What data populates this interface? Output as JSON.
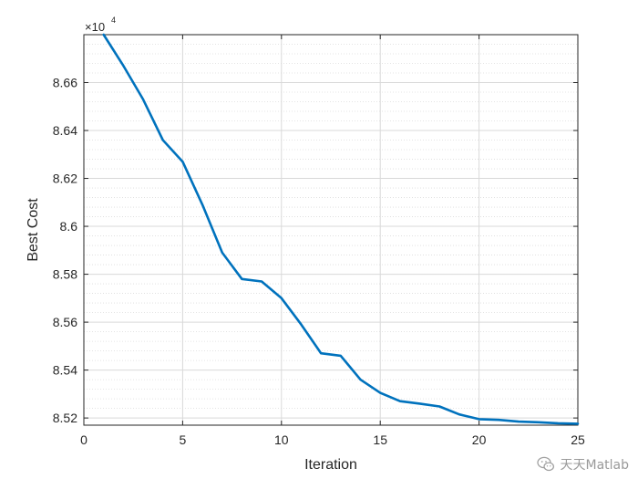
{
  "chart_data": {
    "type": "line",
    "title": "",
    "xlabel": "Iteration",
    "ylabel": "Best Cost",
    "exponent_base": "×10",
    "exponent_power": "4",
    "xlim": [
      0,
      25
    ],
    "ylim": [
      85170,
      86800
    ],
    "grid": true,
    "minor_grid_y": true,
    "x_ticks": [
      0,
      5,
      10,
      15,
      20,
      25
    ],
    "x_tick_labels": [
      "0",
      "5",
      "10",
      "15",
      "20",
      "25"
    ],
    "y_ticks": [
      85200,
      85400,
      85600,
      85800,
      86000,
      86200,
      86400,
      86600
    ],
    "y_tick_labels": [
      "8.52",
      "8.54",
      "8.56",
      "8.58",
      "8.6",
      "8.62",
      "8.64",
      "8.66"
    ],
    "line_color": "#0072BD",
    "series": [
      {
        "x": [
          1,
          2,
          3,
          4,
          5,
          6,
          7,
          8,
          9,
          10,
          11,
          12,
          13,
          14,
          15,
          16,
          17,
          18,
          19,
          20,
          21,
          22,
          23,
          24,
          25
        ],
        "y": [
          86800,
          86670,
          86530,
          86360,
          86270,
          86090,
          85890,
          85780,
          85770,
          85700,
          85590,
          85470,
          85460,
          85360,
          85305,
          85270,
          85260,
          85248,
          85215,
          85195,
          85192,
          85185,
          85182,
          85178,
          85176
        ]
      }
    ]
  },
  "watermark": {
    "text": "天天Matlab",
    "icon": "wechat-icon"
  }
}
